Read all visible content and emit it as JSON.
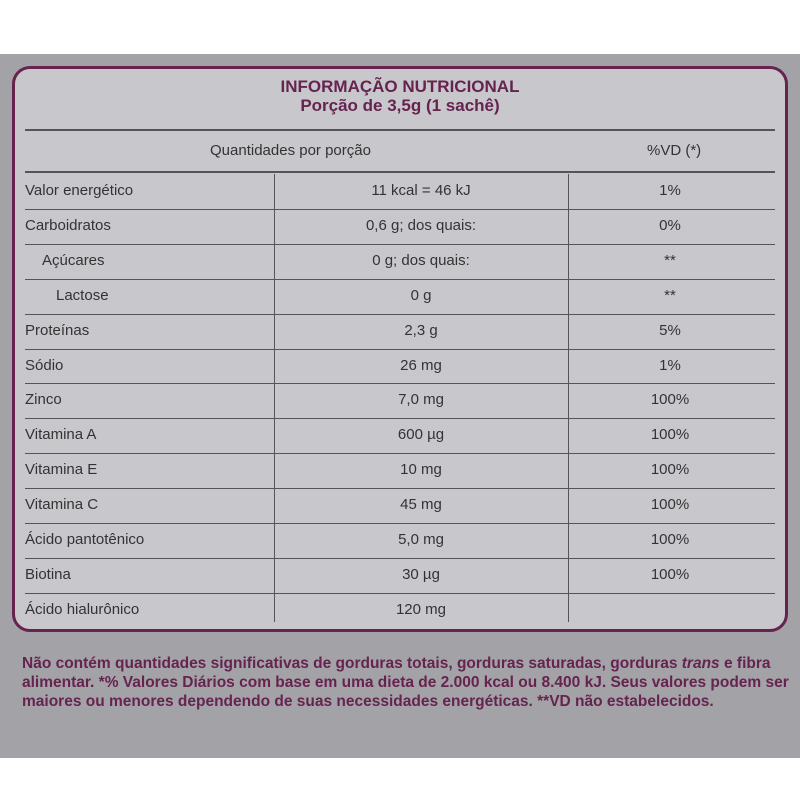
{
  "label": {
    "title": "INFORMAÇÃO NUTRICIONAL",
    "serving": "Porção de 3,5g (1 sachê)",
    "header_amount": "Quantidades por porção",
    "header_vd": "%VD (*)",
    "rows": [
      {
        "name": "Valor energético",
        "amount": "11 kcal = 46 kJ",
        "vd": "1%"
      },
      {
        "name": "Carboidratos",
        "amount": "0,6 g; dos quais:",
        "vd": "0%"
      },
      {
        "name": "Açúcares",
        "amount": "0 g; dos quais:",
        "vd": "**"
      },
      {
        "name": "Lactose",
        "amount": "0 g",
        "vd": "**"
      },
      {
        "name": "Proteínas",
        "amount": "2,3 g",
        "vd": "5%"
      },
      {
        "name": "Sódio",
        "amount": "26 mg",
        "vd": "1%"
      },
      {
        "name": "Zinco",
        "amount": "7,0 mg",
        "vd": "100%"
      },
      {
        "name": "Vitamina A",
        "amount": "600 µg",
        "vd": "100%"
      },
      {
        "name": "Vitamina E",
        "amount": "10 mg",
        "vd": "100%"
      },
      {
        "name": "Vitamina C",
        "amount": "45 mg",
        "vd": "100%"
      },
      {
        "name": "Ácido pantotênico",
        "amount": "5,0 mg",
        "vd": "100%"
      },
      {
        "name": "Biotina",
        "amount": "30 µg",
        "vd": "100%"
      },
      {
        "name": "Ácido hialurônico",
        "amount": "120 mg",
        "vd": ""
      }
    ]
  },
  "footnote": {
    "part1": "Não contém quantidades significativas de gorduras totais, gorduras saturadas, gorduras ",
    "trans": "trans",
    "part2": " e fibra alimentar. *% Valores Diários com base em uma dieta de 2.000 kcal ou 8.400 kJ. Seus valores podem ser maiores ou menores dependendo de suas necessidades energéticas. **VD não estabelecidos."
  },
  "colors": {
    "accent": "#66234f",
    "panel": "#a3a3a7",
    "table_bg": "#c8c8cc"
  }
}
